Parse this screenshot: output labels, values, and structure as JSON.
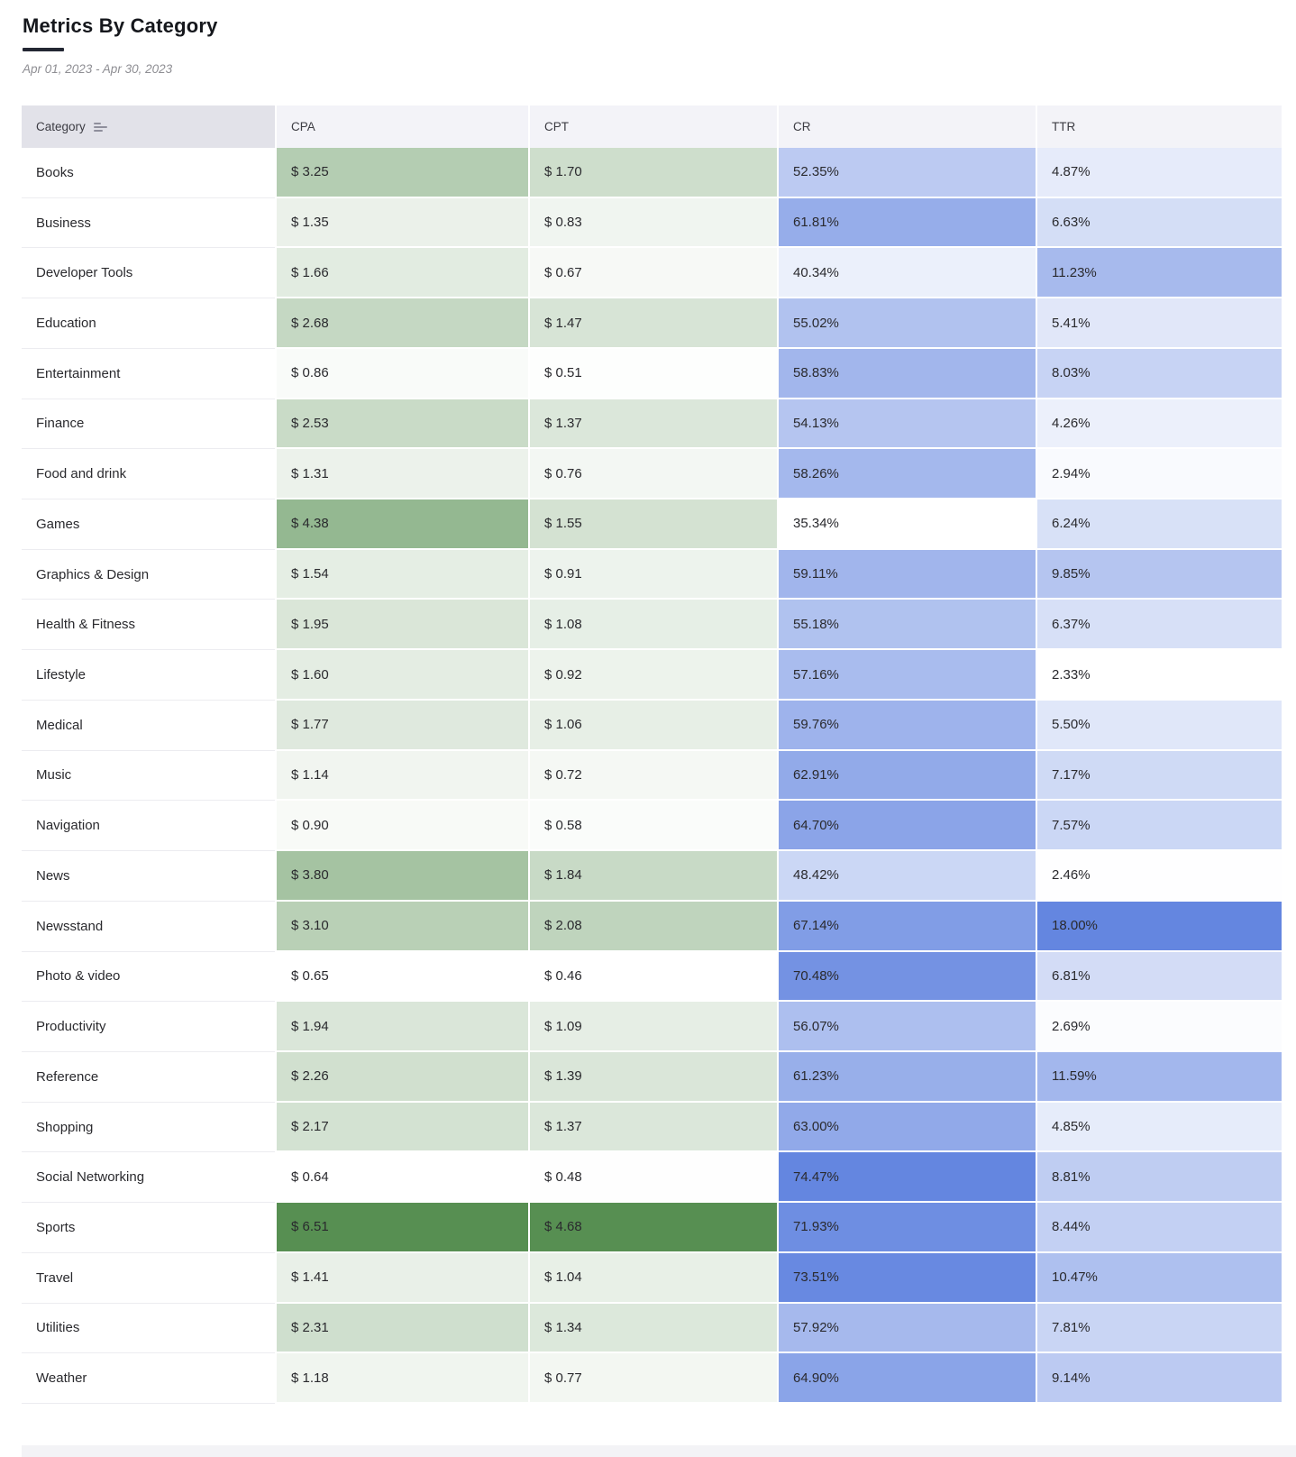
{
  "page": {
    "title": "Metrics By Category",
    "date_range": "Apr 01, 2023 - Apr 30, 2023"
  },
  "table": {
    "columns": [
      "Category",
      "CPA",
      "CPT",
      "CR",
      "TTR"
    ]
  },
  "colors": {
    "scale_start": "#FFFFFF",
    "currency_scale_end": "#578F52",
    "percent_scale_end": "#6486E0",
    "header_category_bg": "#E2E2E9",
    "header_metric_bg": "#F3F3F8",
    "title_underline": "#232733"
  },
  "chart_data": {
    "type": "heatmap",
    "title": "Metrics By Category",
    "subtitle": "Apr 01, 2023 - Apr 30, 2023",
    "row_header": "Category",
    "columns": [
      "CPA",
      "CPT",
      "CR",
      "TTR"
    ],
    "column_formats": [
      "currency",
      "currency",
      "percent",
      "percent"
    ],
    "categories": [
      "Books",
      "Business",
      "Developer Tools",
      "Education",
      "Entertainment",
      "Finance",
      "Food and drink",
      "Games",
      "Graphics & Design",
      "Health & Fitness",
      "Lifestyle",
      "Medical",
      "Music",
      "Navigation",
      "News",
      "Newsstand",
      "Photo & video",
      "Productivity",
      "Reference",
      "Shopping",
      "Social Networking",
      "Sports",
      "Travel",
      "Utilities",
      "Weather"
    ],
    "series": [
      {
        "name": "CPA",
        "format": "currency",
        "values": [
          3.25,
          1.35,
          1.66,
          2.68,
          0.86,
          2.53,
          1.31,
          4.38,
          1.54,
          1.95,
          1.6,
          1.77,
          1.14,
          0.9,
          3.8,
          3.1,
          0.65,
          1.94,
          2.26,
          2.17,
          0.64,
          6.51,
          1.41,
          2.31,
          1.18
        ]
      },
      {
        "name": "CPT",
        "format": "currency",
        "values": [
          1.7,
          0.83,
          0.67,
          1.47,
          0.51,
          1.37,
          0.76,
          1.55,
          0.91,
          1.08,
          0.92,
          1.06,
          0.72,
          0.58,
          1.84,
          2.08,
          0.46,
          1.09,
          1.39,
          1.37,
          0.48,
          4.68,
          1.04,
          1.34,
          0.77
        ]
      },
      {
        "name": "CR",
        "format": "percent",
        "values": [
          52.35,
          61.81,
          40.34,
          55.02,
          58.83,
          54.13,
          58.26,
          35.34,
          59.11,
          55.18,
          57.16,
          59.76,
          62.91,
          64.7,
          48.42,
          67.14,
          70.48,
          56.07,
          61.23,
          63.0,
          74.47,
          71.93,
          73.51,
          57.92,
          64.9
        ]
      },
      {
        "name": "TTR",
        "format": "percent",
        "values": [
          4.87,
          6.63,
          11.23,
          5.41,
          8.03,
          4.26,
          2.94,
          6.24,
          9.85,
          6.37,
          2.33,
          5.5,
          7.17,
          7.57,
          2.46,
          18.0,
          6.81,
          2.69,
          11.59,
          4.85,
          8.81,
          8.44,
          10.47,
          7.81,
          9.14
        ]
      }
    ],
    "color_scale": {
      "currency": [
        "#FFFFFF",
        "#578F52"
      ],
      "percent": [
        "#FFFFFF",
        "#6486E0"
      ],
      "normalization": "per-column min-max"
    }
  }
}
